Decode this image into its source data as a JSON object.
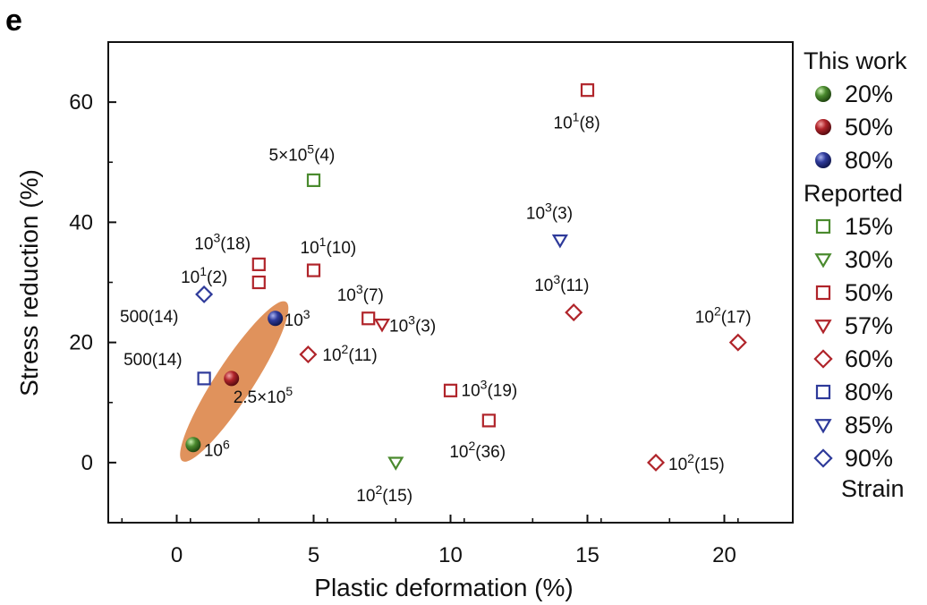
{
  "panel_label": "e",
  "chart_data": {
    "type": "scatter",
    "xlabel": "Plastic deformation (%)",
    "ylabel": "Stress reduction (%)",
    "xlim": [
      -2.5,
      22.5
    ],
    "ylim": [
      -10,
      70
    ],
    "x_ticks": [
      0,
      5,
      10,
      15,
      20
    ],
    "y_ticks": [
      0,
      20,
      40,
      60
    ],
    "grid": false,
    "legend_position": "right",
    "colors": {
      "green": "#4a8a2e",
      "red": "#b0242a",
      "blue": "#2e3a9a",
      "ellipse": "#e0925c"
    },
    "highlight": {
      "shape": "ellipse",
      "points_enclosed": [
        "20%",
        "50%",
        "80%"
      ],
      "color": "#e0925c"
    },
    "series": [
      {
        "name": "20%",
        "group": "This work",
        "marker": "sphere",
        "color": "#4a8a2e",
        "points": [
          {
            "x": 0.6,
            "y": 3,
            "label": {
              "base": "10",
              "sup": "6",
              "tail": ""
            }
          }
        ]
      },
      {
        "name": "50%",
        "group": "This work",
        "marker": "sphere",
        "color": "#b0242a",
        "points": [
          {
            "x": 2.0,
            "y": 14,
            "label": {
              "base": "2.5×10",
              "sup": "5",
              "tail": ""
            }
          }
        ]
      },
      {
        "name": "80%",
        "group": "This work",
        "marker": "sphere",
        "color": "#2e3a9a",
        "points": [
          {
            "x": 3.6,
            "y": 24,
            "label": {
              "base": "10",
              "sup": "3",
              "tail": ""
            }
          }
        ]
      },
      {
        "name": "15%",
        "group": "Reported",
        "marker": "square",
        "color": "#4a8a2e",
        "points": [
          {
            "x": 5.0,
            "y": 47,
            "label": {
              "base": "5×10",
              "sup": "5",
              "tail": "(4)"
            }
          }
        ]
      },
      {
        "name": "30%",
        "group": "Reported",
        "marker": "triangle-down",
        "color": "#4a8a2e",
        "points": [
          {
            "x": 8.0,
            "y": 0,
            "label": {
              "base": "10",
              "sup": "2",
              "tail": "(15)"
            }
          }
        ]
      },
      {
        "name": "50%",
        "group": "Reported",
        "marker": "square",
        "color": "#b0242a",
        "points": [
          {
            "x": 15.0,
            "y": 62,
            "label": {
              "base": "10",
              "sup": "1",
              "tail": "(8)"
            }
          },
          {
            "x": 3.0,
            "y": 33,
            "label": {
              "base": "10",
              "sup": "3",
              "tail": "(18)"
            }
          },
          {
            "x": 3.0,
            "y": 30,
            "label": null
          },
          {
            "x": 5.0,
            "y": 32,
            "label": {
              "base": "10",
              "sup": "1",
              "tail": "(10)"
            }
          },
          {
            "x": 7.0,
            "y": 24,
            "label": {
              "base": "10",
              "sup": "3",
              "tail": "(7)"
            }
          },
          {
            "x": 10.0,
            "y": 12,
            "label": {
              "base": "10",
              "sup": "3",
              "tail": "(19)"
            }
          },
          {
            "x": 11.4,
            "y": 7,
            "label": {
              "base": "10",
              "sup": "2",
              "tail": "(36)"
            }
          }
        ]
      },
      {
        "name": "57%",
        "group": "Reported",
        "marker": "triangle-down",
        "color": "#b0242a",
        "points": [
          {
            "x": 7.5,
            "y": 23,
            "label": {
              "base": "10",
              "sup": "3",
              "tail": "(3)"
            }
          }
        ]
      },
      {
        "name": "60%",
        "group": "Reported",
        "marker": "diamond",
        "color": "#b0242a",
        "points": [
          {
            "x": 14.5,
            "y": 25,
            "label": {
              "base": "10",
              "sup": "3",
              "tail": "(11)"
            }
          },
          {
            "x": 20.5,
            "y": 20,
            "label": {
              "base": "10",
              "sup": "2",
              "tail": "(17)"
            }
          },
          {
            "x": 4.8,
            "y": 18,
            "label": {
              "base": "10",
              "sup": "2",
              "tail": "(11)"
            }
          },
          {
            "x": 17.5,
            "y": 0,
            "label": {
              "base": "10",
              "sup": "2",
              "tail": "(15)"
            }
          }
        ]
      },
      {
        "name": "80%",
        "group": "Reported",
        "marker": "square",
        "color": "#2e3a9a",
        "points": [
          {
            "x": 1.0,
            "y": 14,
            "label": {
              "base": "500",
              "sup": "",
              "tail": "(14)"
            }
          }
        ]
      },
      {
        "name": "85%",
        "group": "Reported",
        "marker": "triangle-down",
        "color": "#2e3a9a",
        "points": [
          {
            "x": 14.0,
            "y": 37,
            "label": {
              "base": "10",
              "sup": "3",
              "tail": "(3)"
            }
          }
        ]
      },
      {
        "name": "90%",
        "group": "Reported",
        "marker": "diamond",
        "color": "#2e3a9a",
        "points": [
          {
            "x": 1.0,
            "y": 28,
            "label": {
              "base": "10",
              "sup": "1",
              "tail": "(2)"
            }
          }
        ]
      }
    ],
    "extra_annotations": [
      {
        "base": "500",
        "sup": "",
        "tail": "(14)"
      }
    ],
    "legend": {
      "groups": [
        {
          "title": "This work",
          "items": [
            "20%",
            "50%",
            "80%"
          ]
        },
        {
          "title": "Reported",
          "items": [
            "15%",
            "30%",
            "50%",
            "57%",
            "60%",
            "80%",
            "85%",
            "90%"
          ]
        }
      ],
      "footer": "Strain"
    }
  }
}
